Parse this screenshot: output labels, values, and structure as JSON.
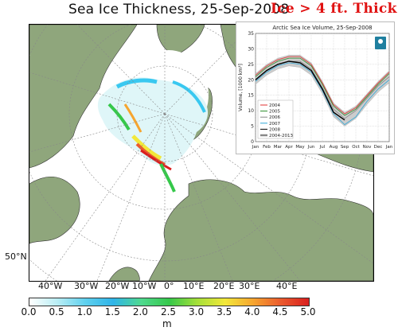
{
  "header": {
    "title": "Sea Ice Thickness, 25-Sep-2008",
    "callout": "Ice > 4 ft. Thick"
  },
  "map": {
    "lon_labels": [
      "40°W",
      "30°W",
      "20°W",
      "10°W",
      "0°",
      "10°E",
      "20°E",
      "30°E",
      "40°E"
    ],
    "lat_label": "50°N",
    "colors": {
      "land": "#8fa67c",
      "ocean": "#ffffff",
      "ice_base": "#dff6f8"
    }
  },
  "colorbar": {
    "ticks": [
      "0.0",
      "0.5",
      "1.0",
      "1.5",
      "2.0",
      "2.5",
      "3.0",
      "3.5",
      "4.0",
      "4.5",
      "5.0"
    ],
    "unit": "m",
    "stops": [
      "#ffffff",
      "#b9eef5",
      "#5fd0ee",
      "#2fb4e8",
      "#4fd98f",
      "#35c84a",
      "#a5e03a",
      "#f2e83a",
      "#f6a52f",
      "#ea5a2d",
      "#d91f1f"
    ]
  },
  "inset": {
    "logo": "sea-ice-logo",
    "chart_data": {
      "type": "line",
      "title": "Arctic Sea Ice Volume, 25-Sep-2008",
      "ylabel": "Volume, [1000 km³]",
      "ylim": [
        0,
        35
      ],
      "yticks": [
        "0",
        "5",
        "10",
        "15",
        "20",
        "25",
        "30",
        "35"
      ],
      "x": [
        "Jan",
        "Feb",
        "Mar",
        "Apr",
        "May",
        "Jun",
        "Jul",
        "Aug",
        "Sep",
        "Oct",
        "Nov",
        "Dec",
        "Jan"
      ],
      "grid": true,
      "legend_position": "center-left",
      "series": [
        {
          "name": "2004",
          "color": "#e03030",
          "values": [
            21.5,
            24.5,
            26.5,
            27.5,
            27.5,
            25,
            19,
            12,
            9,
            11,
            15,
            19,
            22.5
          ]
        },
        {
          "name": "2005",
          "color": "#2a8a2a",
          "values": [
            21,
            24,
            26,
            27,
            27,
            24.5,
            18.5,
            11.5,
            8.5,
            10.5,
            14.5,
            18.5,
            22
          ]
        },
        {
          "name": "2006",
          "color": "#888888",
          "values": [
            20,
            23,
            25,
            26,
            26,
            23.5,
            17.5,
            10.5,
            7.5,
            10,
            14,
            18,
            21
          ]
        },
        {
          "name": "2007",
          "color": "#30a8d8",
          "values": [
            19.5,
            22.5,
            24.5,
            25.5,
            25,
            22.5,
            16.5,
            9,
            5.5,
            8,
            13,
            17,
            20
          ]
        },
        {
          "name": "2008",
          "color": "#000000",
          "values": [
            20,
            23,
            25,
            26,
            25.5,
            23,
            17,
            9.5,
            7,
            null,
            null,
            null,
            null
          ]
        },
        {
          "name": "2004-2013",
          "color": "#cccccc",
          "band": true,
          "upper": [
            22,
            25,
            27,
            28,
            28,
            25.5,
            19.5,
            12.5,
            9.5,
            11.5,
            15.5,
            19.5,
            23
          ],
          "lower": [
            18.5,
            21.5,
            23.5,
            24.5,
            24,
            21.5,
            15.5,
            8,
            5,
            7.5,
            12,
            16,
            19
          ]
        }
      ]
    }
  }
}
